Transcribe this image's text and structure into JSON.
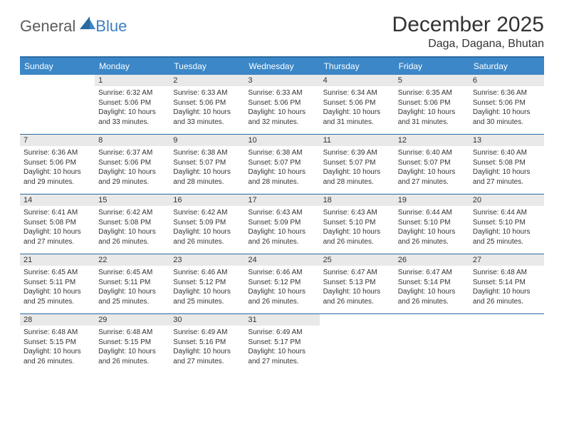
{
  "logo": {
    "general": "General",
    "blue": "Blue"
  },
  "title": "December 2025",
  "location": "Daga, Dagana, Bhutan",
  "colors": {
    "header_bg": "#3b87c8",
    "header_border": "#2a6aa0",
    "daynum_bg": "#e9e9e9",
    "text": "#333333",
    "logo_gray": "#5b5b5b",
    "logo_blue": "#3b7fc4"
  },
  "weekdays": [
    "Sunday",
    "Monday",
    "Tuesday",
    "Wednesday",
    "Thursday",
    "Friday",
    "Saturday"
  ],
  "weeks": [
    [
      {
        "n": "",
        "l1": "",
        "l2": "",
        "l3": "",
        "l4": ""
      },
      {
        "n": "1",
        "l1": "Sunrise: 6:32 AM",
        "l2": "Sunset: 5:06 PM",
        "l3": "Daylight: 10 hours",
        "l4": "and 33 minutes."
      },
      {
        "n": "2",
        "l1": "Sunrise: 6:33 AM",
        "l2": "Sunset: 5:06 PM",
        "l3": "Daylight: 10 hours",
        "l4": "and 33 minutes."
      },
      {
        "n": "3",
        "l1": "Sunrise: 6:33 AM",
        "l2": "Sunset: 5:06 PM",
        "l3": "Daylight: 10 hours",
        "l4": "and 32 minutes."
      },
      {
        "n": "4",
        "l1": "Sunrise: 6:34 AM",
        "l2": "Sunset: 5:06 PM",
        "l3": "Daylight: 10 hours",
        "l4": "and 31 minutes."
      },
      {
        "n": "5",
        "l1": "Sunrise: 6:35 AM",
        "l2": "Sunset: 5:06 PM",
        "l3": "Daylight: 10 hours",
        "l4": "and 31 minutes."
      },
      {
        "n": "6",
        "l1": "Sunrise: 6:36 AM",
        "l2": "Sunset: 5:06 PM",
        "l3": "Daylight: 10 hours",
        "l4": "and 30 minutes."
      }
    ],
    [
      {
        "n": "7",
        "l1": "Sunrise: 6:36 AM",
        "l2": "Sunset: 5:06 PM",
        "l3": "Daylight: 10 hours",
        "l4": "and 29 minutes."
      },
      {
        "n": "8",
        "l1": "Sunrise: 6:37 AM",
        "l2": "Sunset: 5:06 PM",
        "l3": "Daylight: 10 hours",
        "l4": "and 29 minutes."
      },
      {
        "n": "9",
        "l1": "Sunrise: 6:38 AM",
        "l2": "Sunset: 5:07 PM",
        "l3": "Daylight: 10 hours",
        "l4": "and 28 minutes."
      },
      {
        "n": "10",
        "l1": "Sunrise: 6:38 AM",
        "l2": "Sunset: 5:07 PM",
        "l3": "Daylight: 10 hours",
        "l4": "and 28 minutes."
      },
      {
        "n": "11",
        "l1": "Sunrise: 6:39 AM",
        "l2": "Sunset: 5:07 PM",
        "l3": "Daylight: 10 hours",
        "l4": "and 28 minutes."
      },
      {
        "n": "12",
        "l1": "Sunrise: 6:40 AM",
        "l2": "Sunset: 5:07 PM",
        "l3": "Daylight: 10 hours",
        "l4": "and 27 minutes."
      },
      {
        "n": "13",
        "l1": "Sunrise: 6:40 AM",
        "l2": "Sunset: 5:08 PM",
        "l3": "Daylight: 10 hours",
        "l4": "and 27 minutes."
      }
    ],
    [
      {
        "n": "14",
        "l1": "Sunrise: 6:41 AM",
        "l2": "Sunset: 5:08 PM",
        "l3": "Daylight: 10 hours",
        "l4": "and 27 minutes."
      },
      {
        "n": "15",
        "l1": "Sunrise: 6:42 AM",
        "l2": "Sunset: 5:08 PM",
        "l3": "Daylight: 10 hours",
        "l4": "and 26 minutes."
      },
      {
        "n": "16",
        "l1": "Sunrise: 6:42 AM",
        "l2": "Sunset: 5:09 PM",
        "l3": "Daylight: 10 hours",
        "l4": "and 26 minutes."
      },
      {
        "n": "17",
        "l1": "Sunrise: 6:43 AM",
        "l2": "Sunset: 5:09 PM",
        "l3": "Daylight: 10 hours",
        "l4": "and 26 minutes."
      },
      {
        "n": "18",
        "l1": "Sunrise: 6:43 AM",
        "l2": "Sunset: 5:10 PM",
        "l3": "Daylight: 10 hours",
        "l4": "and 26 minutes."
      },
      {
        "n": "19",
        "l1": "Sunrise: 6:44 AM",
        "l2": "Sunset: 5:10 PM",
        "l3": "Daylight: 10 hours",
        "l4": "and 26 minutes."
      },
      {
        "n": "20",
        "l1": "Sunrise: 6:44 AM",
        "l2": "Sunset: 5:10 PM",
        "l3": "Daylight: 10 hours",
        "l4": "and 25 minutes."
      }
    ],
    [
      {
        "n": "21",
        "l1": "Sunrise: 6:45 AM",
        "l2": "Sunset: 5:11 PM",
        "l3": "Daylight: 10 hours",
        "l4": "and 25 minutes."
      },
      {
        "n": "22",
        "l1": "Sunrise: 6:45 AM",
        "l2": "Sunset: 5:11 PM",
        "l3": "Daylight: 10 hours",
        "l4": "and 25 minutes."
      },
      {
        "n": "23",
        "l1": "Sunrise: 6:46 AM",
        "l2": "Sunset: 5:12 PM",
        "l3": "Daylight: 10 hours",
        "l4": "and 25 minutes."
      },
      {
        "n": "24",
        "l1": "Sunrise: 6:46 AM",
        "l2": "Sunset: 5:12 PM",
        "l3": "Daylight: 10 hours",
        "l4": "and 26 minutes."
      },
      {
        "n": "25",
        "l1": "Sunrise: 6:47 AM",
        "l2": "Sunset: 5:13 PM",
        "l3": "Daylight: 10 hours",
        "l4": "and 26 minutes."
      },
      {
        "n": "26",
        "l1": "Sunrise: 6:47 AM",
        "l2": "Sunset: 5:14 PM",
        "l3": "Daylight: 10 hours",
        "l4": "and 26 minutes."
      },
      {
        "n": "27",
        "l1": "Sunrise: 6:48 AM",
        "l2": "Sunset: 5:14 PM",
        "l3": "Daylight: 10 hours",
        "l4": "and 26 minutes."
      }
    ],
    [
      {
        "n": "28",
        "l1": "Sunrise: 6:48 AM",
        "l2": "Sunset: 5:15 PM",
        "l3": "Daylight: 10 hours",
        "l4": "and 26 minutes."
      },
      {
        "n": "29",
        "l1": "Sunrise: 6:48 AM",
        "l2": "Sunset: 5:15 PM",
        "l3": "Daylight: 10 hours",
        "l4": "and 26 minutes."
      },
      {
        "n": "30",
        "l1": "Sunrise: 6:49 AM",
        "l2": "Sunset: 5:16 PM",
        "l3": "Daylight: 10 hours",
        "l4": "and 27 minutes."
      },
      {
        "n": "31",
        "l1": "Sunrise: 6:49 AM",
        "l2": "Sunset: 5:17 PM",
        "l3": "Daylight: 10 hours",
        "l4": "and 27 minutes."
      },
      {
        "n": "",
        "l1": "",
        "l2": "",
        "l3": "",
        "l4": ""
      },
      {
        "n": "",
        "l1": "",
        "l2": "",
        "l3": "",
        "l4": ""
      },
      {
        "n": "",
        "l1": "",
        "l2": "",
        "l3": "",
        "l4": ""
      }
    ]
  ]
}
